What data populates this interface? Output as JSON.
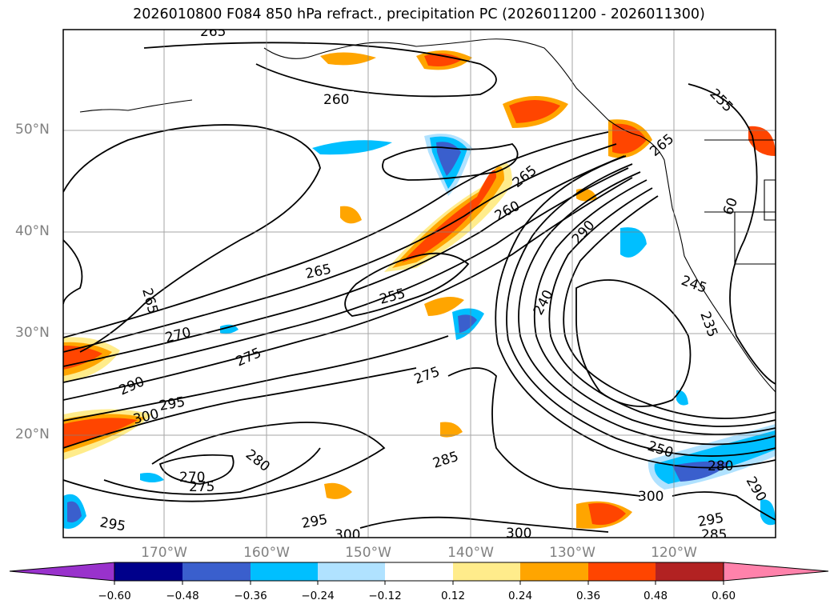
{
  "title": "2026010800 F084 850 hPa refract., precipitation PC (2026011200 - 2026011300)",
  "lat_labels": [
    "50°N",
    "40°N",
    "30°N",
    "20°N"
  ],
  "lon_labels": [
    "170°W",
    "160°W",
    "150°W",
    "140°W",
    "130°W",
    "120°W"
  ],
  "contour_labels": [
    "265",
    "260",
    "255",
    "265",
    "260",
    "265",
    "265",
    "255",
    "270",
    "275",
    "290",
    "295",
    "300",
    "270",
    "275",
    "280",
    "285",
    "295",
    "300",
    "295",
    "300",
    "290",
    "240",
    "275",
    "250",
    "280",
    "290",
    "300",
    "295",
    "285",
    "245",
    "235",
    "60",
    "265"
  ],
  "colorbar": {
    "colors": [
      "#9932cc",
      "#00008b",
      "#3a5fcd",
      "#00bfff",
      "#b0e2ff",
      "#ffffff",
      "#ffec8b",
      "#ffa500",
      "#ff4500",
      "#b22222",
      "#ff82ab"
    ],
    "ticks": [
      "−0.60",
      "−0.48",
      "−0.36",
      "−0.24",
      "−0.12",
      "0.12",
      "0.24",
      "0.36",
      "0.48",
      "0.60"
    ]
  }
}
